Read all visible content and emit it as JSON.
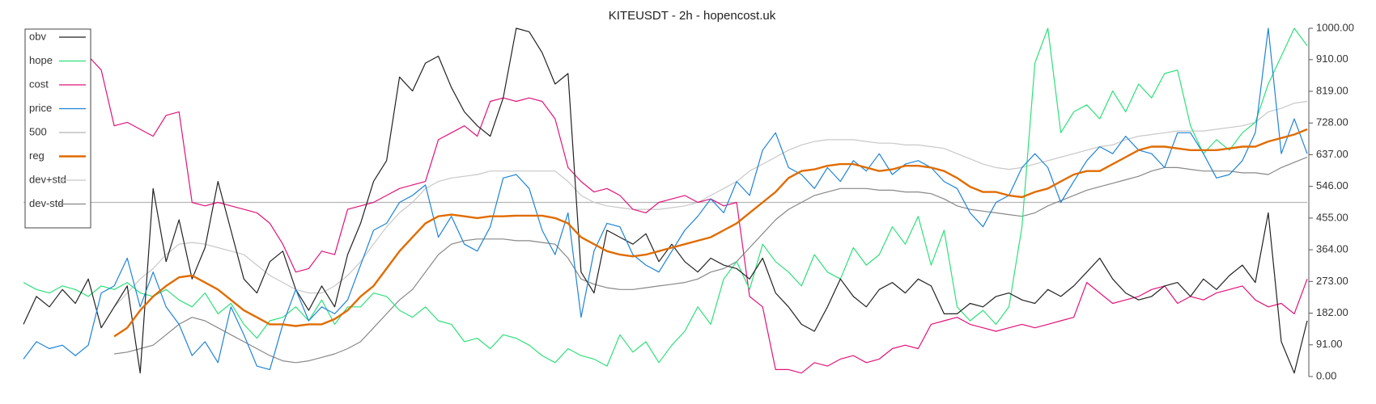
{
  "chart_data": {
    "type": "line",
    "title": "KITEUSDT - 2h - hopencost.uk",
    "ylim": [
      0,
      1000
    ],
    "yticks": [
      {
        "value": 0,
        "label": "0.00"
      },
      {
        "value": 91,
        "label": "91.00"
      },
      {
        "value": 182,
        "label": "182.00"
      },
      {
        "value": 273,
        "label": "273.00"
      },
      {
        "value": 364,
        "label": "364.00"
      },
      {
        "value": 455,
        "label": "455.00"
      },
      {
        "value": 546,
        "label": "546.00"
      },
      {
        "value": 637,
        "label": "637.00"
      },
      {
        "value": 728,
        "label": "728.00"
      },
      {
        "value": 819,
        "label": "819.00"
      },
      {
        "value": 910,
        "label": "910.00"
      },
      {
        "value": 1000,
        "label": "1000.00"
      }
    ],
    "legend": "top-left",
    "series": [
      {
        "name": "obv",
        "color": "#222222",
        "width": 1.2,
        "values": [
          150,
          230,
          200,
          250,
          210,
          280,
          140,
          200,
          260,
          10,
          540,
          330,
          450,
          280,
          370,
          560,
          420,
          280,
          240,
          330,
          360,
          250,
          190,
          260,
          200,
          350,
          440,
          560,
          620,
          860,
          820,
          900,
          920,
          830,
          760,
          720,
          690,
          800,
          1000,
          990,
          930,
          840,
          870,
          300,
          240,
          420,
          400,
          380,
          410,
          330,
          380,
          330,
          300,
          340,
          320,
          310,
          280,
          340,
          240,
          200,
          150,
          130,
          200,
          280,
          230,
          200,
          250,
          270,
          240,
          280,
          260,
          180,
          180,
          210,
          200,
          230,
          240,
          220,
          210,
          250,
          230,
          260,
          300,
          340,
          280,
          240,
          220,
          230,
          260,
          270,
          230,
          280,
          250,
          290,
          320,
          270,
          470,
          100,
          10,
          160
        ]
      },
      {
        "name": "hope",
        "color": "#2ee07a",
        "width": 1.2,
        "values": [
          270,
          250,
          240,
          260,
          250,
          230,
          260,
          250,
          270,
          240,
          230,
          250,
          220,
          200,
          240,
          180,
          210,
          150,
          110,
          160,
          170,
          200,
          160,
          220,
          150,
          200,
          200,
          240,
          230,
          190,
          170,
          200,
          160,
          150,
          100,
          110,
          80,
          120,
          110,
          90,
          60,
          40,
          80,
          60,
          50,
          30,
          120,
          70,
          100,
          40,
          90,
          130,
          200,
          150,
          280,
          330,
          250,
          380,
          330,
          300,
          260,
          350,
          300,
          280,
          370,
          320,
          350,
          430,
          380,
          460,
          320,
          420,
          200,
          160,
          190,
          150,
          200,
          430,
          900,
          1000,
          700,
          760,
          780,
          740,
          820,
          760,
          840,
          800,
          870,
          880,
          720,
          640,
          680,
          650,
          700,
          730,
          840,
          920,
          1000,
          950
        ]
      },
      {
        "name": "cost",
        "color": "#e0147a",
        "width": 1.2,
        "values": [
          null,
          null,
          null,
          null,
          null,
          920,
          880,
          720,
          730,
          710,
          690,
          750,
          760,
          500,
          490,
          500,
          490,
          480,
          470,
          440,
          380,
          300,
          310,
          360,
          350,
          480,
          490,
          500,
          520,
          540,
          550,
          560,
          680,
          700,
          720,
          690,
          790,
          800,
          790,
          800,
          790,
          740,
          600,
          560,
          530,
          540,
          520,
          480,
          470,
          500,
          510,
          520,
          500,
          510,
          490,
          500,
          230,
          200,
          20,
          20,
          10,
          40,
          30,
          50,
          60,
          40,
          50,
          80,
          90,
          80,
          150,
          160,
          170,
          150,
          140,
          130,
          140,
          150,
          140,
          150,
          160,
          170,
          270,
          240,
          210,
          220,
          230,
          250,
          260,
          210,
          230,
          220,
          240,
          250,
          260,
          220,
          200,
          210,
          180,
          280
        ]
      },
      {
        "name": "price",
        "color": "#1f84d6",
        "width": 1.2,
        "values": [
          50,
          100,
          80,
          90,
          60,
          90,
          240,
          260,
          340,
          200,
          300,
          200,
          150,
          60,
          100,
          40,
          200,
          120,
          30,
          20,
          150,
          250,
          160,
          200,
          180,
          220,
          320,
          420,
          440,
          500,
          520,
          550,
          400,
          460,
          380,
          360,
          430,
          570,
          580,
          540,
          420,
          350,
          470,
          170,
          360,
          440,
          430,
          350,
          320,
          300,
          360,
          420,
          460,
          510,
          470,
          560,
          520,
          650,
          700,
          600,
          580,
          540,
          600,
          560,
          620,
          590,
          640,
          580,
          610,
          620,
          600,
          560,
          540,
          470,
          430,
          500,
          520,
          600,
          640,
          600,
          500,
          560,
          620,
          660,
          640,
          690,
          650,
          640,
          600,
          700,
          700,
          640,
          570,
          580,
          620,
          700,
          1000,
          640,
          740,
          640
        ]
      },
      {
        "name": "500",
        "color": "#b5b5b5",
        "width": 1.2,
        "values": [
          500,
          500,
          500,
          500,
          500,
          500,
          500,
          500,
          500,
          500,
          500,
          500,
          500,
          500,
          500,
          500,
          500,
          500,
          500,
          500,
          500,
          500,
          500,
          500,
          500,
          500,
          500,
          500,
          500,
          500,
          500,
          500,
          500,
          500,
          500,
          500,
          500,
          500,
          500,
          500,
          500,
          500,
          500,
          500,
          500,
          500,
          500,
          500,
          500,
          500,
          500,
          500,
          500,
          500,
          500,
          500,
          500,
          500,
          500,
          500,
          500,
          500,
          500,
          500,
          500,
          500,
          500,
          500,
          500,
          500,
          500,
          500,
          500,
          500,
          500,
          500,
          500,
          500,
          500,
          500,
          500,
          500,
          500,
          500,
          500,
          500,
          500,
          500,
          500,
          500,
          500,
          500,
          500,
          500,
          500,
          500,
          500,
          500,
          500,
          500
        ]
      },
      {
        "name": "reg",
        "color": "#e06c00",
        "width": 2.4,
        "values": [
          null,
          null,
          null,
          null,
          null,
          null,
          null,
          115,
          140,
          190,
          230,
          260,
          285,
          290,
          270,
          250,
          220,
          190,
          170,
          150,
          150,
          145,
          150,
          150,
          165,
          190,
          230,
          260,
          310,
          360,
          400,
          440,
          460,
          465,
          460,
          455,
          460,
          460,
          462,
          462,
          462,
          455,
          440,
          400,
          380,
          360,
          350,
          345,
          350,
          360,
          370,
          380,
          390,
          400,
          420,
          440,
          470,
          500,
          530,
          570,
          590,
          595,
          605,
          610,
          610,
          600,
          590,
          595,
          605,
          605,
          600,
          590,
          570,
          545,
          530,
          530,
          520,
          515,
          530,
          540,
          560,
          580,
          590,
          590,
          610,
          630,
          650,
          660,
          660,
          655,
          650,
          650,
          650,
          655,
          660,
          660,
          675,
          685,
          695,
          710
        ]
      },
      {
        "name": "dev+std",
        "color": "#c8c8c8",
        "width": 1.2,
        "values": [
          null,
          null,
          null,
          null,
          null,
          null,
          null,
          200,
          240,
          280,
          310,
          350,
          380,
          385,
          380,
          370,
          360,
          350,
          320,
          290,
          270,
          250,
          240,
          240,
          260,
          290,
          330,
          380,
          430,
          470,
          500,
          540,
          560,
          570,
          575,
          580,
          590,
          590,
          590,
          590,
          590,
          590,
          560,
          520,
          500,
          490,
          485,
          480,
          480,
          480,
          485,
          490,
          500,
          520,
          540,
          560,
          590,
          610,
          630,
          650,
          665,
          675,
          680,
          680,
          680,
          675,
          670,
          670,
          665,
          665,
          660,
          655,
          640,
          625,
          610,
          600,
          595,
          600,
          610,
          620,
          630,
          640,
          650,
          660,
          665,
          680,
          690,
          695,
          700,
          705,
          705,
          705,
          710,
          715,
          720,
          730,
          760,
          770,
          785,
          790
        ]
      },
      {
        "name": "dev-std",
        "color": "#888888",
        "width": 1.2,
        "values": [
          null,
          null,
          null,
          null,
          null,
          null,
          null,
          65,
          70,
          80,
          90,
          120,
          150,
          170,
          160,
          140,
          120,
          100,
          80,
          60,
          45,
          40,
          45,
          55,
          65,
          80,
          100,
          140,
          180,
          220,
          250,
          300,
          350,
          380,
          390,
          395,
          395,
          395,
          390,
          390,
          385,
          380,
          340,
          280,
          265,
          255,
          250,
          250,
          255,
          260,
          265,
          270,
          280,
          300,
          310,
          330,
          370,
          410,
          450,
          480,
          500,
          520,
          530,
          540,
          540,
          540,
          535,
          535,
          530,
          530,
          525,
          510,
          490,
          480,
          475,
          470,
          465,
          460,
          470,
          490,
          505,
          520,
          535,
          545,
          555,
          565,
          575,
          590,
          600,
          600,
          595,
          590,
          590,
          590,
          585,
          585,
          580,
          600,
          615,
          630
        ]
      }
    ]
  }
}
